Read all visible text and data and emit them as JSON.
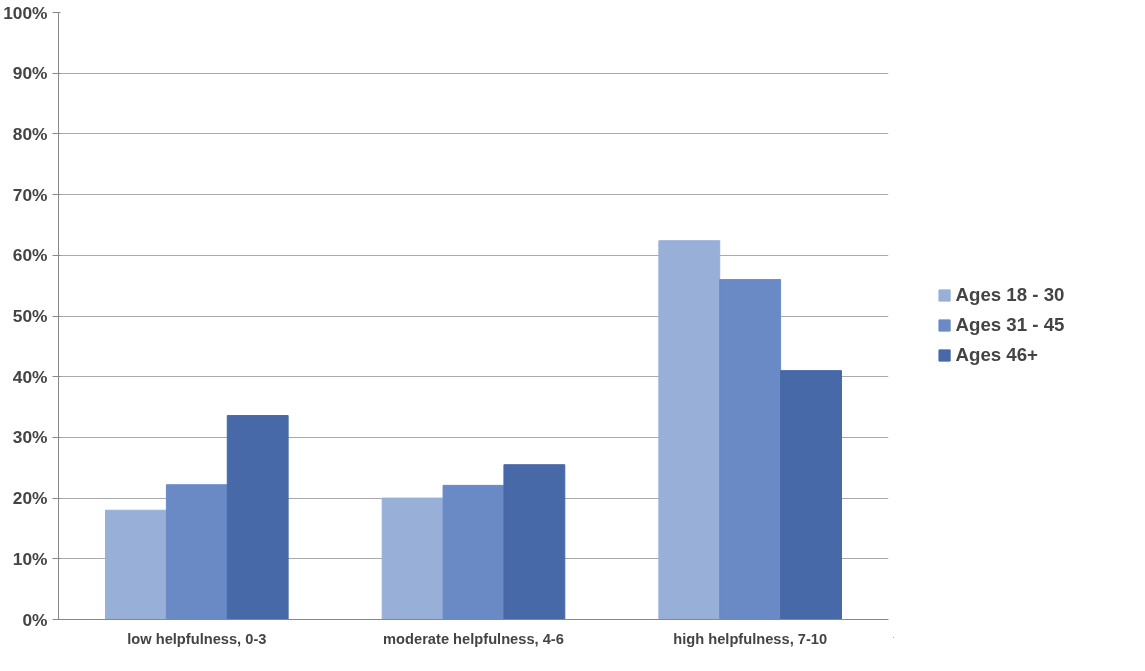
{
  "chart_data": {
    "type": "bar",
    "categories": [
      "low helpfulness, 0-3",
      "moderate helpfulness, 4-6",
      "high helpfulness, 7-10"
    ],
    "series": [
      {
        "name": "Ages 18 - 30",
        "color": "#98afd8",
        "values": [
          18,
          20,
          62.4
        ]
      },
      {
        "name": "Ages 31 - 45",
        "color": "#6a8ac6",
        "values": [
          22.2,
          22.1,
          56
        ]
      },
      {
        "name": "Ages 46+",
        "color": "#4769a8",
        "values": [
          33.6,
          25.5,
          41
        ]
      }
    ],
    "ylim": [
      0,
      100
    ],
    "yticks": [
      {
        "value": 0,
        "label": "0%"
      },
      {
        "value": 10,
        "label": "10%"
      },
      {
        "value": 20,
        "label": "20%"
      },
      {
        "value": 30,
        "label": "30%"
      },
      {
        "value": 40,
        "label": "40%"
      },
      {
        "value": 50,
        "label": "50%"
      },
      {
        "value": 60,
        "label": "60%"
      },
      {
        "value": 70,
        "label": "70%"
      },
      {
        "value": 80,
        "label": "80%"
      },
      {
        "value": 90,
        "label": "90%"
      },
      {
        "value": 100,
        "label": "100%"
      }
    ],
    "grid": "y",
    "legend": "right"
  }
}
